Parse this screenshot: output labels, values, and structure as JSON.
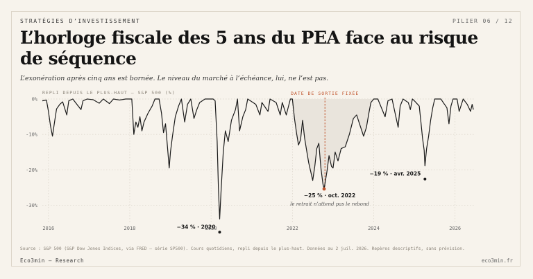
{
  "header": {
    "kicker": "STRATÉGIES D’INVESTISSEMENT",
    "pager": "PILIER 06 / 12"
  },
  "title": "L’horloge fiscale des 5 ans du PEA face au risque de séquence",
  "subtitle": "L’exonération après cinq ans est bornée. Le niveau du marché à l’échéance, lui, ne l’est pas.",
  "footer": {
    "source": "Source : S&P 500 (S&P Dow Jones Indices, via FRED — série SP500). Cours quotidiens, repli depuis le plus-haut. Données au 2 juil. 2026. Repères descriptifs, sans prévision.",
    "brand": "Eco3min — Research",
    "site": "eco3min.fr"
  },
  "colors": {
    "line": "#1a1a1a",
    "fill": "#e9e4dc",
    "accent": "#c0532b",
    "grid": "#d9d3c8"
  },
  "chart_data": {
    "type": "area",
    "ylabel": "REPLI DEPUIS LE PLUS-HAUT — S&P 500 (%)",
    "ylim": [
      -35,
      0
    ],
    "yticks": [
      0,
      -10,
      -20,
      -30
    ],
    "ytick_labels": [
      "0%",
      "-10%",
      "-20%",
      "-30%"
    ],
    "xlim": [
      2015.85,
      2026.5
    ],
    "xticks": [
      2016,
      2018,
      2020,
      2022,
      2024,
      2026
    ],
    "xtick_labels": [
      "2016",
      "2018",
      "2020",
      "2022",
      "2024",
      "2026"
    ],
    "grid": true,
    "marker_line": {
      "x": 2022.8,
      "label": "DATE DE SORTIE FIXÉE"
    },
    "series": [
      {
        "points": [
          [
            2015.85,
            -0.5
          ],
          [
            2015.95,
            -0.3
          ],
          [
            2016.0,
            -3.5
          ],
          [
            2016.05,
            -7.5
          ],
          [
            2016.1,
            -10.5
          ],
          [
            2016.15,
            -6.5
          ],
          [
            2016.2,
            -2.8
          ],
          [
            2016.28,
            -1.5
          ],
          [
            2016.35,
            -0.8
          ],
          [
            2016.45,
            -4.5
          ],
          [
            2016.5,
            -0.5
          ],
          [
            2016.6,
            0
          ],
          [
            2016.7,
            -1.5
          ],
          [
            2016.8,
            -3.0
          ],
          [
            2016.85,
            -0.5
          ],
          [
            2016.95,
            0
          ],
          [
            2017.1,
            -0.2
          ],
          [
            2017.25,
            -1.2
          ],
          [
            2017.35,
            0
          ],
          [
            2017.5,
            -1.3
          ],
          [
            2017.6,
            0
          ],
          [
            2017.75,
            -0.3
          ],
          [
            2017.9,
            0
          ],
          [
            2018.05,
            0
          ],
          [
            2018.1,
            -10.0
          ],
          [
            2018.15,
            -6.5
          ],
          [
            2018.2,
            -8.0
          ],
          [
            2018.25,
            -5.0
          ],
          [
            2018.3,
            -9.0
          ],
          [
            2018.35,
            -6.5
          ],
          [
            2018.45,
            -4.0
          ],
          [
            2018.55,
            -2.0
          ],
          [
            2018.62,
            0
          ],
          [
            2018.72,
            0
          ],
          [
            2018.78,
            -4.0
          ],
          [
            2018.83,
            -9.5
          ],
          [
            2018.88,
            -7.0
          ],
          [
            2018.93,
            -14.0
          ],
          [
            2018.97,
            -19.5
          ],
          [
            2019.0,
            -15.0
          ],
          [
            2019.05,
            -10.5
          ],
          [
            2019.12,
            -5.0
          ],
          [
            2019.2,
            -2.0
          ],
          [
            2019.27,
            0
          ],
          [
            2019.35,
            -6.5
          ],
          [
            2019.42,
            -1.5
          ],
          [
            2019.5,
            0
          ],
          [
            2019.58,
            -5.5
          ],
          [
            2019.65,
            -3.0
          ],
          [
            2019.72,
            -1.0
          ],
          [
            2019.85,
            0
          ],
          [
            2020.05,
            0
          ],
          [
            2020.1,
            -0.5
          ],
          [
            2020.15,
            -12.0
          ],
          [
            2020.18,
            -25.0
          ],
          [
            2020.21,
            -33.9
          ],
          [
            2020.25,
            -25.0
          ],
          [
            2020.3,
            -15.0
          ],
          [
            2020.35,
            -9.0
          ],
          [
            2020.42,
            -12.0
          ],
          [
            2020.5,
            -6.0
          ],
          [
            2020.6,
            -3.0
          ],
          [
            2020.65,
            0
          ],
          [
            2020.7,
            -9.0
          ],
          [
            2020.78,
            -5.0
          ],
          [
            2020.85,
            -3.0
          ],
          [
            2020.9,
            0
          ],
          [
            2021.1,
            -1.5
          ],
          [
            2021.2,
            -4.5
          ],
          [
            2021.25,
            -1.0
          ],
          [
            2021.4,
            -3.5
          ],
          [
            2021.45,
            0
          ],
          [
            2021.6,
            -1.0
          ],
          [
            2021.7,
            -4.5
          ],
          [
            2021.75,
            -1.0
          ],
          [
            2021.85,
            -4.5
          ],
          [
            2021.95,
            0
          ],
          [
            2022.0,
            0
          ],
          [
            2022.05,
            -5.5
          ],
          [
            2022.1,
            -9.5
          ],
          [
            2022.15,
            -13.0
          ],
          [
            2022.2,
            -11.5
          ],
          [
            2022.25,
            -6.0
          ],
          [
            2022.3,
            -11.0
          ],
          [
            2022.35,
            -14.5
          ],
          [
            2022.4,
            -18.0
          ],
          [
            2022.45,
            -20.5
          ],
          [
            2022.5,
            -23.0
          ],
          [
            2022.55,
            -19.0
          ],
          [
            2022.6,
            -14.0
          ],
          [
            2022.65,
            -12.5
          ],
          [
            2022.7,
            -19.5
          ],
          [
            2022.75,
            -24.0
          ],
          [
            2022.78,
            -25.4
          ],
          [
            2022.85,
            -20.5
          ],
          [
            2022.9,
            -16.0
          ],
          [
            2022.96,
            -19.0
          ],
          [
            2023.0,
            -19.5
          ],
          [
            2023.05,
            -15.0
          ],
          [
            2023.12,
            -17.5
          ],
          [
            2023.2,
            -14.0
          ],
          [
            2023.3,
            -13.5
          ],
          [
            2023.4,
            -10.0
          ],
          [
            2023.5,
            -5.5
          ],
          [
            2023.58,
            -4.5
          ],
          [
            2023.65,
            -7.0
          ],
          [
            2023.75,
            -10.5
          ],
          [
            2023.82,
            -8.0
          ],
          [
            2023.88,
            -4.0
          ],
          [
            2023.93,
            -1.0
          ],
          [
            2024.0,
            0
          ],
          [
            2024.1,
            0
          ],
          [
            2024.28,
            -5.0
          ],
          [
            2024.35,
            -0.5
          ],
          [
            2024.45,
            0
          ],
          [
            2024.6,
            -8.0
          ],
          [
            2024.65,
            -2.0
          ],
          [
            2024.72,
            0
          ],
          [
            2024.85,
            -1.0
          ],
          [
            2024.9,
            -3.0
          ],
          [
            2024.95,
            0
          ],
          [
            2025.0,
            -0.5
          ],
          [
            2025.08,
            -1.5
          ],
          [
            2025.12,
            -2.0
          ],
          [
            2025.16,
            -6.5
          ],
          [
            2025.2,
            -11.0
          ],
          [
            2025.24,
            -14.5
          ],
          [
            2025.26,
            -18.9
          ],
          [
            2025.3,
            -14.0
          ],
          [
            2025.35,
            -10.5
          ],
          [
            2025.4,
            -6.0
          ],
          [
            2025.45,
            -2.5
          ],
          [
            2025.5,
            0
          ],
          [
            2025.65,
            0
          ],
          [
            2025.8,
            -2.5
          ],
          [
            2025.85,
            -7.0
          ],
          [
            2025.9,
            -2.0
          ],
          [
            2025.95,
            0
          ],
          [
            2026.05,
            0
          ],
          [
            2026.1,
            -3.5
          ],
          [
            2026.2,
            0
          ],
          [
            2026.3,
            -1.5
          ],
          [
            2026.38,
            -3.5
          ],
          [
            2026.42,
            -1.5
          ],
          [
            2026.45,
            -3.0
          ]
        ]
      }
    ],
    "annotations": [
      {
        "x": 2020.21,
        "y": -33.9,
        "label": "−34 % · 2020",
        "anchor": "end"
      },
      {
        "x": 2022.78,
        "y": -25.4,
        "label": "−25 % · oct. 2022",
        "note": "le retrait n’attend pas le rebond",
        "anchor": "middle",
        "highlight": true
      },
      {
        "x": 2025.26,
        "y": -18.9,
        "label": "−19 % · avr. 2025",
        "anchor": "end"
      }
    ]
  }
}
